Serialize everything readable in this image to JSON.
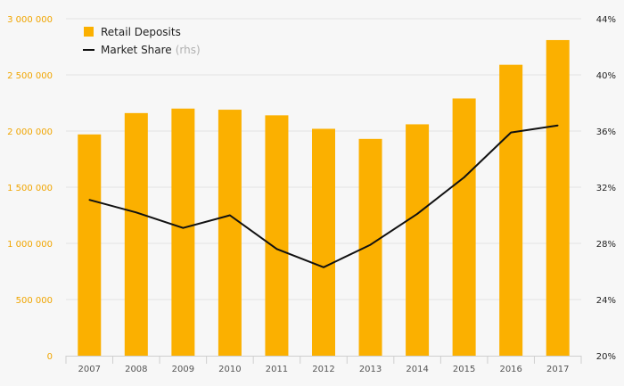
{
  "chart_data": {
    "type": "bar",
    "categories": [
      "2007",
      "2008",
      "2009",
      "2010",
      "2011",
      "2012",
      "2013",
      "2014",
      "2015",
      "2016",
      "2017"
    ],
    "series": [
      {
        "name": "Retail Deposits",
        "type": "bar",
        "axis": "left",
        "color": "#fbb000",
        "values": [
          1970000,
          2160000,
          2200000,
          2190000,
          2140000,
          2020000,
          1930000,
          2060000,
          2290000,
          2590000,
          2810000
        ]
      },
      {
        "name": "Market Share",
        "type": "line",
        "axis": "right",
        "color": "#111111",
        "values": [
          31.1,
          30.2,
          29.1,
          30.0,
          27.6,
          26.3,
          27.9,
          30.1,
          32.7,
          35.9,
          36.4
        ]
      }
    ],
    "y_left": {
      "min": 0,
      "max": 3000000,
      "ticks": [
        0,
        500000,
        1000000,
        1500000,
        2000000,
        2500000,
        3000000
      ],
      "tick_labels": [
        "0",
        "500 000",
        "1 000 000",
        "1 500 000",
        "2 000 000",
        "2 500 000",
        "3 000 000"
      ]
    },
    "y_right": {
      "min": 20,
      "max": 44,
      "ticks": [
        20,
        24,
        28,
        32,
        36,
        40,
        44
      ],
      "tick_labels": [
        "20%",
        "24%",
        "28%",
        "32%",
        "36%",
        "40%",
        "44%"
      ]
    },
    "legend": {
      "position": "top-left",
      "entries": [
        {
          "label": "Retail Deposits",
          "note": "",
          "symbol": "square"
        },
        {
          "label": "Market Share",
          "note": "(rhs)",
          "symbol": "line"
        }
      ]
    },
    "colors": {
      "bar": "#fbb000",
      "line": "#111111",
      "left_axis_text": "#f0a500",
      "right_axis_text": "#222222",
      "background": "#f7f7f7"
    },
    "grid": true
  }
}
